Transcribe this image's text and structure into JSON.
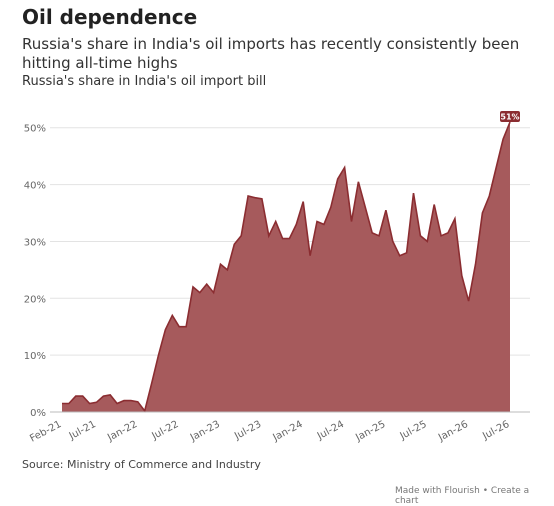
{
  "chart_data": {
    "type": "area",
    "title": "Oil dependence",
    "subtitle": "Russia's share in India's oil imports has recently consistently been hitting all-time highs",
    "y_label": "Russia's share in India's oil import bill",
    "source": "Source: Ministry of Commerce and Industry",
    "credit": "Made with Flourish • Create a chart",
    "categories": [
      "Feb-21",
      null,
      null,
      null,
      null,
      "Jul-21",
      null,
      null,
      null,
      null,
      null,
      "Jan-22",
      null,
      null,
      null,
      null,
      null,
      "Jul-22",
      null,
      null,
      null,
      null,
      null,
      "Jan-23",
      null,
      null,
      null,
      null,
      null,
      "Jul-23",
      null,
      null,
      null,
      null,
      null,
      "Jan-24",
      null,
      null,
      null,
      null,
      null,
      "Jul-24",
      null,
      null,
      null,
      null,
      null,
      "Jan-25",
      null,
      null,
      null,
      null,
      null,
      "Jul-25",
      null,
      null,
      null,
      null,
      null,
      "Jan-26",
      null,
      null,
      null,
      null,
      null,
      "Jul-26"
    ],
    "values": [
      1.5,
      1.5,
      2.8,
      2.8,
      1.5,
      1.7,
      2.8,
      3,
      1.5,
      2,
      2,
      1.8,
      0.2,
      5,
      10,
      14.5,
      17,
      15,
      15,
      22,
      21,
      22.5,
      21,
      26,
      25,
      29.5,
      31,
      38,
      37.7,
      37.5,
      31,
      33.5,
      30.5,
      30.5,
      33,
      37,
      27.5,
      33.5,
      33,
      36,
      41,
      43,
      33.5,
      40.5,
      36,
      31.5,
      31,
      35.5,
      30,
      27.5,
      28,
      38.5,
      31,
      30,
      36.5,
      31,
      31.5,
      34,
      24,
      19.5,
      26,
      35,
      38,
      43,
      48,
      51
    ],
    "value_labels": [
      null,
      null,
      null,
      null,
      null,
      null,
      null,
      null,
      null,
      null,
      null,
      null,
      null,
      null,
      null,
      null,
      null,
      null,
      null,
      null,
      null,
      null,
      null,
      null,
      null,
      null,
      null,
      null,
      null,
      null,
      null,
      null,
      null,
      null,
      null,
      null,
      null,
      null,
      null,
      null,
      null,
      null,
      null,
      null,
      null,
      null,
      null,
      null,
      null,
      null,
      null,
      null,
      null,
      null,
      null,
      null,
      null,
      null,
      null,
      null,
      null,
      null,
      null,
      null,
      null,
      "51%"
    ],
    "color": "#a65a5c",
    "line_color": "#8b2d31",
    "ylim": [
      0,
      54
    ],
    "yticks": [
      {
        "value": 0,
        "label": "0%"
      },
      {
        "value": 10,
        "label": "10%"
      },
      {
        "value": 20,
        "label": "20%"
      },
      {
        "value": 30,
        "label": "30%"
      },
      {
        "value": 40,
        "label": "40%"
      },
      {
        "value": 50,
        "label": "50%"
      }
    ],
    "grid": true
  }
}
